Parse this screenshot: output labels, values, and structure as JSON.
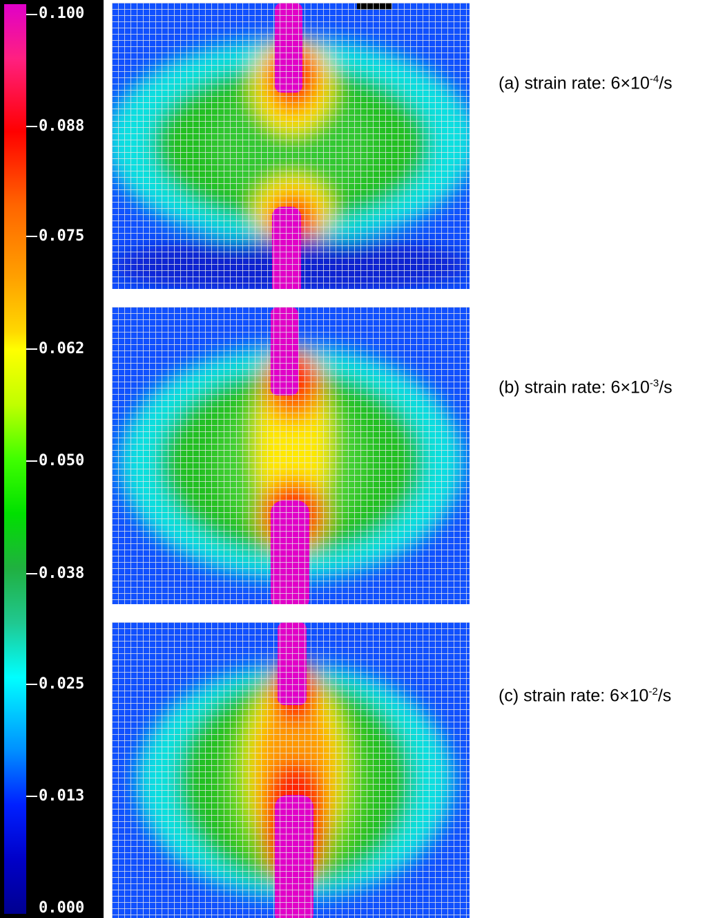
{
  "colorbar": {
    "ticks": [
      "0.100",
      "0.088",
      "0.075",
      "0.062",
      "0.050",
      "0.038",
      "0.025",
      "0.013",
      "0.000"
    ]
  },
  "panels": [
    {
      "id": "a",
      "prefix": "(a) strain rate: 6×10",
      "exponent": "-4",
      "suffix": "/s"
    },
    {
      "id": "b",
      "prefix": "(b) strain rate: 6×10",
      "exponent": "-3",
      "suffix": "/s"
    },
    {
      "id": "c",
      "prefix": "(c) strain rate: 6×10",
      "exponent": "-2",
      "suffix": "/s"
    }
  ],
  "colors": {
    "magenta": "#e000c8",
    "red": "#ff2000",
    "orange": "#ff9a00",
    "yellow": "#ffe800",
    "green": "#20c020",
    "cyan": "#10e0e0",
    "blue": "#1050ff",
    "dark_blue": "#1020d0"
  }
}
